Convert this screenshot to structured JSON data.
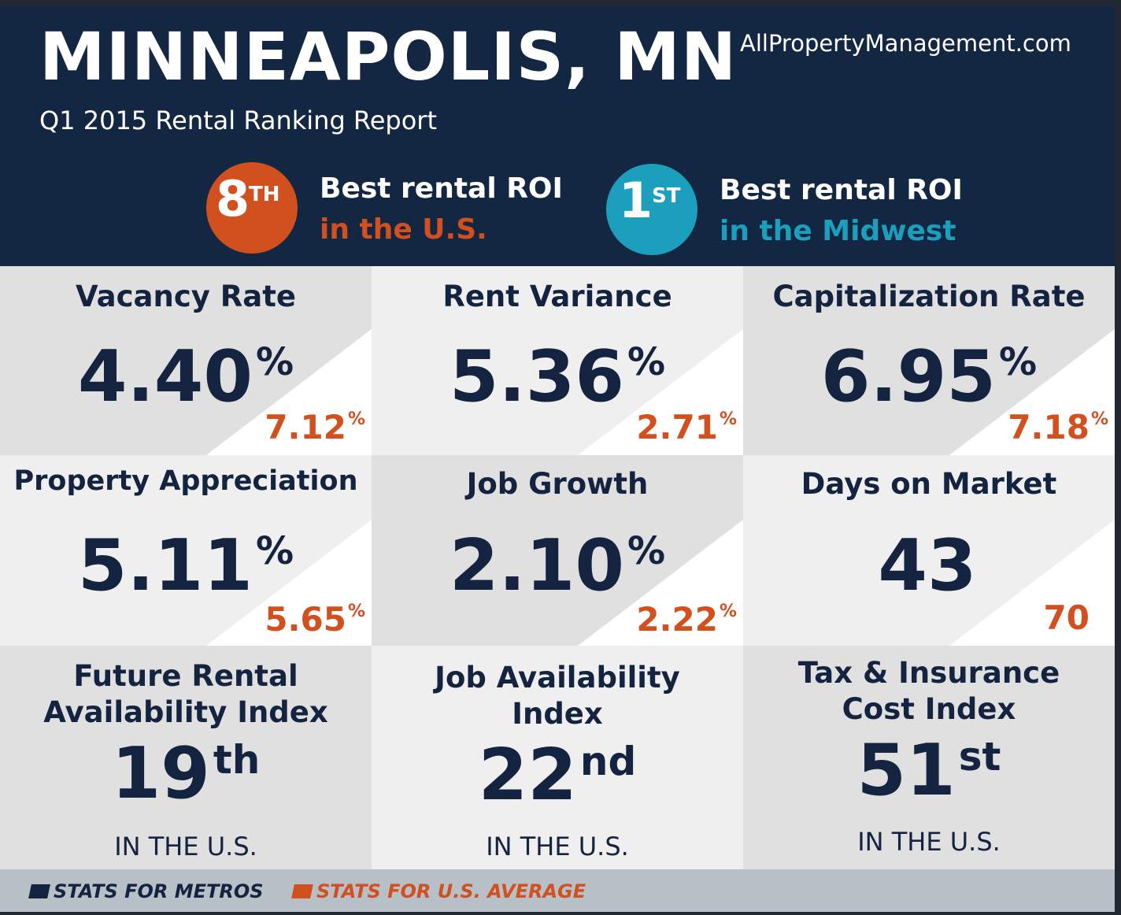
{
  "header": {
    "title": "MINNEAPOLIS, MN",
    "subtitle": "Q1 2015 Rental Ranking Report",
    "site": "AllPropertyManagement.com"
  },
  "rankings": [
    {
      "number": "8",
      "suffix": "TH",
      "line1": "Best rental ROI",
      "line2": "in the U.S.",
      "color": "#d24f1e"
    },
    {
      "number": "1",
      "suffix": "ST",
      "line1": "Best rental ROI",
      "line2": "in the Midwest",
      "color": "#1b9fbd"
    }
  ],
  "stats": [
    {
      "title": "Vacancy Rate",
      "value": "4.40",
      "unit": "%",
      "us_avg": "7.12",
      "us_unit": "%"
    },
    {
      "title": "Rent Variance",
      "value": "5.36",
      "unit": "%",
      "us_avg": "2.71",
      "us_unit": "%"
    },
    {
      "title": "Capitalization Rate",
      "value": "6.95",
      "unit": "%",
      "us_avg": "7.18",
      "us_unit": "%"
    },
    {
      "title": "Property Appreciation",
      "value": "5.11",
      "unit": "%",
      "us_avg": "5.65",
      "us_unit": "%"
    },
    {
      "title": "Job Growth",
      "value": "2.10",
      "unit": "%",
      "us_avg": "2.22",
      "us_unit": "%"
    },
    {
      "title": "Days on Market",
      "value": "43",
      "unit": "",
      "us_avg": "70",
      "us_unit": ""
    }
  ],
  "indices": [
    {
      "title_line1": "Future Rental",
      "title_line2": "Availability Index",
      "rank": "19",
      "ordinal": "th",
      "note": "IN THE U.S."
    },
    {
      "title_line1": "Job Availability",
      "title_line2": "Index",
      "rank": "22",
      "ordinal": "nd",
      "note": "IN THE U.S."
    },
    {
      "title_line1": "Tax & Insurance",
      "title_line2": "Cost Index",
      "rank": "51",
      "ordinal": "st",
      "note": "IN THE U.S."
    }
  ],
  "legend": {
    "metro": "STATS FOR METROS",
    "us": "STATS FOR U.S. AVERAGE"
  },
  "colors": {
    "navy": "#132742",
    "orange": "#d24f1e",
    "teal": "#1b9fbd"
  }
}
